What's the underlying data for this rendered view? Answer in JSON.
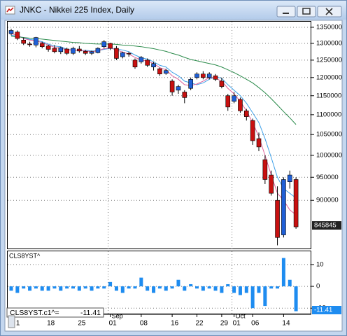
{
  "chart_data": [
    {
      "type": "candlestick",
      "title": "JNKC - Nikkei 225 Index, Daily",
      "categories": [
        null,
        "1",
        null,
        null,
        null,
        null,
        "18",
        null,
        null,
        null,
        null,
        "25",
        null,
        null,
        null,
        null,
        "01",
        null,
        null,
        null,
        null,
        "08",
        null,
        null,
        null,
        null,
        "16",
        null,
        null,
        null,
        "22",
        null,
        null,
        null,
        "29",
        null,
        "01",
        null,
        null,
        "06",
        null,
        null,
        null,
        null,
        "14",
        null,
        null
      ],
      "months": [
        null,
        null,
        null,
        null,
        null,
        null,
        null,
        null,
        null,
        null,
        null,
        null,
        null,
        null,
        null,
        null,
        "Sep",
        null,
        null,
        null,
        null,
        null,
        null,
        null,
        null,
        null,
        null,
        null,
        null,
        null,
        null,
        null,
        null,
        null,
        null,
        null,
        "Oct",
        null,
        null,
        null,
        null,
        null,
        null,
        null,
        null,
        null,
        null
      ],
      "open": [
        1330000,
        1335000,
        1310000,
        1298000,
        1295000,
        1300000,
        1292000,
        1285000,
        1275000,
        1283000,
        1270000,
        1283000,
        1276000,
        1270000,
        1272000,
        1290000,
        1300000,
        1285000,
        1260000,
        1270000,
        1250000,
        1245000,
        1250000,
        1230000,
        1225000,
        1212000,
        1190000,
        1165000,
        1160000,
        1170000,
        1200000,
        1210000,
        1200000,
        1205000,
        1190000,
        1150000,
        1135000,
        1140000,
        1110000,
        1085000,
        1040000,
        990000,
        955000,
        900000,
        830000,
        940000,
        945000
      ],
      "high": [
        1345000,
        1340000,
        1318000,
        1305000,
        1320000,
        1305000,
        1296000,
        1295000,
        1290000,
        1287000,
        1290000,
        1292000,
        1280000,
        1278000,
        1288000,
        1310000,
        1302000,
        1292000,
        1275000,
        1275000,
        1255000,
        1262000,
        1255000,
        1245000,
        1228000,
        1225000,
        1195000,
        1180000,
        1165000,
        1200000,
        1215000,
        1218000,
        1215000,
        1210000,
        1200000,
        1155000,
        1160000,
        1145000,
        1115000,
        1090000,
        1055000,
        1000000,
        965000,
        930000,
        950000,
        965000,
        950000
      ],
      "low": [
        1325000,
        1310000,
        1295000,
        1290000,
        1288000,
        1285000,
        1275000,
        1270000,
        1268000,
        1265000,
        1265000,
        1272000,
        1265000,
        1265000,
        1270000,
        1285000,
        1280000,
        1250000,
        1255000,
        1260000,
        1225000,
        1240000,
        1230000,
        1220000,
        1205000,
        1208000,
        1150000,
        1155000,
        1130000,
        1165000,
        1195000,
        1195000,
        1195000,
        1190000,
        1170000,
        1110000,
        1130000,
        1105000,
        1085000,
        1025000,
        1010000,
        935000,
        910000,
        810000,
        825000,
        925000,
        842000
      ],
      "close": [
        1340000,
        1315000,
        1300000,
        1296000,
        1318000,
        1290000,
        1282000,
        1275000,
        1287000,
        1270000,
        1285000,
        1277000,
        1270000,
        1275000,
        1285000,
        1305000,
        1285000,
        1255000,
        1272000,
        1268000,
        1230000,
        1258000,
        1235000,
        1240000,
        1210000,
        1220000,
        1160000,
        1175000,
        1145000,
        1195000,
        1210000,
        1200000,
        1210000,
        1195000,
        1175000,
        1120000,
        1150000,
        1110000,
        1095000,
        1035000,
        1020000,
        945000,
        915000,
        825000,
        945000,
        955000,
        845845
      ],
      "up_color": "#1f5fd6",
      "down_color": "#c81010",
      "lines": [
        {
          "color": "#3fa0e8",
          "values": [
            1325000,
            1322000,
            1318000,
            1312000,
            1310000,
            1305000,
            1298000,
            1292000,
            1290000,
            1282000,
            1280000,
            1278000,
            1279000,
            1277000,
            1278000,
            1282000,
            1285000,
            1283000,
            1280000,
            1275000,
            1265000,
            1257000,
            1253000,
            1245000,
            1235000,
            1230000,
            1215000,
            1205000,
            1190000,
            1185000,
            1180000,
            1185000,
            1195000,
            1202000,
            1198000,
            1180000,
            1165000,
            1150000,
            1130000,
            1105000,
            1080000,
            1040000,
            995000,
            950000,
            925000,
            915000,
            905000
          ]
        },
        {
          "color": "#e0609a",
          "values": [
            1330000,
            1325000,
            1315000,
            1310000,
            1308000,
            1302000,
            1295000,
            1288000,
            1286000,
            1280000,
            1280000,
            1279000,
            1277000,
            1275000,
            1278000,
            1284000,
            1286000,
            1280000,
            1274000,
            1268000,
            1258000,
            1250000,
            1248000,
            1240000,
            1228000,
            1222000,
            1205000,
            1195000,
            1180000,
            1178000,
            1182000,
            1190000,
            1200000,
            1198000,
            1190000,
            1170000,
            1155000,
            1135000,
            1110000,
            1080000,
            1045000,
            1000000,
            955000,
            915000,
            900000,
            880000,
            870000
          ]
        },
        {
          "color": "#2a8a4a",
          "values": [
            1322000,
            1320000,
            1318000,
            1316000,
            1315000,
            1313000,
            1311000,
            1309000,
            1307000,
            1305000,
            1303000,
            1302000,
            1300000,
            1299000,
            1298000,
            1298000,
            1298000,
            1297000,
            1295000,
            1294000,
            1292000,
            1290000,
            1287000,
            1284000,
            1280000,
            1276000,
            1270000,
            1265000,
            1258000,
            1252000,
            1248000,
            1244000,
            1240000,
            1236000,
            1230000,
            1222000,
            1214000,
            1205000,
            1195000,
            1185000,
            1172000,
            1158000,
            1142000,
            1125000,
            1108000,
            1092000,
            1075000
          ]
        }
      ],
      "log_scale": true,
      "ylim": [
        804000,
        1370000
      ],
      "yticks": [
        1350000,
        1300000,
        1250000,
        1200000,
        1150000,
        1100000,
        1050000,
        1000000,
        950000,
        900000
      ],
      "grid": true
    },
    {
      "type": "bar",
      "title": "CLS8YST^",
      "readout": "CLS8YST.c1^=",
      "values": [
        -2,
        -3,
        -1,
        -2,
        -1,
        -2,
        -2,
        -1,
        -2,
        -1,
        -1,
        -2,
        -1,
        -2,
        -1,
        -1,
        2,
        -2,
        -3,
        -1,
        -1,
        4,
        -2,
        -3,
        -1,
        -2,
        -1,
        3,
        -2,
        1,
        -1,
        -2,
        -1,
        -2,
        -3,
        1,
        -3,
        -4,
        -3,
        -10,
        -3,
        -9,
        -1,
        -1,
        13,
        3,
        -11.41
      ],
      "color": "#1e8cf0",
      "ylim": [
        -12.5,
        16.4
      ],
      "yticks": [
        10,
        0,
        -10
      ],
      "grid": true
    }
  ]
}
